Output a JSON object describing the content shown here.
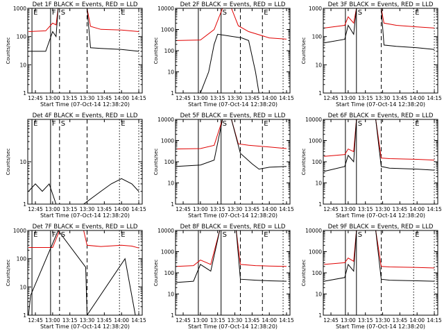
{
  "chart_data": [
    {
      "type": "line",
      "title": "Det 1F BLACK = Events, RED = LLD",
      "xlabel": "Start Time (07-Oct-14 12:38:20)",
      "ylabel": "Counts/sec",
      "ylog": true,
      "ylim": [
        1,
        1000
      ],
      "ytick_labels": [
        "1",
        "10",
        "100",
        "1000"
      ],
      "xlim": [
        12.6389,
        14.3
      ],
      "xtick_labels": [
        "12:45",
        "13:00",
        "13:15",
        "13:30",
        "13:45",
        "14:00",
        "14:15"
      ],
      "markers": [
        {
          "x": 12.7,
          "label": "E",
          "style": "solid"
        },
        {
          "x": 12.97,
          "label": "F",
          "style": "solid"
        },
        {
          "x": 13.1,
          "label": "S",
          "style": "dashed"
        },
        {
          "x": 13.5,
          "label": "",
          "style": "dashed"
        },
        {
          "x": 13.97,
          "label": "E",
          "style": "dotted"
        },
        {
          "x": 14.25,
          "label": "",
          "style": "dotted"
        }
      ],
      "series": [
        {
          "name": "RED",
          "color": "#e00000",
          "x": [
            12.65,
            12.9,
            13.0,
            13.05,
            13.08,
            13.5,
            13.55,
            13.7,
            14.0,
            14.25
          ],
          "y": [
            150,
            160,
            300,
            260,
            1000,
            1000,
            230,
            180,
            170,
            150
          ]
        },
        {
          "name": "BLACK",
          "color": "#000000",
          "x": [
            12.65,
            12.9,
            13.0,
            13.05,
            13.08,
            13.5,
            13.55,
            13.7,
            14.0,
            14.25
          ],
          "y": [
            30,
            30,
            150,
            100,
            1000,
            1000,
            40,
            38,
            35,
            30
          ]
        }
      ]
    },
    {
      "type": "line",
      "title": "Det 2F BLACK = Events, RED = LLD",
      "xlabel": "Start Time (07-Oct-14 12:38:20)",
      "ylabel": "Counts/sec",
      "ylog": true,
      "ylim": [
        1,
        10000
      ],
      "ytick_labels": [
        "1",
        "10",
        "100",
        "1000",
        "10000"
      ],
      "xlim": [
        12.6389,
        14.3
      ],
      "xtick_labels": [
        "12:45",
        "13:00",
        "13:15",
        "13:30",
        "13:45",
        "14:00",
        "14:15"
      ],
      "markers": [
        {
          "x": 12.97,
          "label": "",
          "style": "solid"
        },
        {
          "x": 13.3,
          "label": "S",
          "style": "solid"
        },
        {
          "x": 13.58,
          "label": "",
          "style": "dashed"
        },
        {
          "x": 13.9,
          "label": "E",
          "style": "dashed"
        },
        {
          "x": 14.2,
          "label": "",
          "style": "dotted"
        }
      ],
      "series": [
        {
          "name": "RED",
          "color": "#e00000",
          "x": [
            12.65,
            13.0,
            13.2,
            13.32,
            13.45,
            13.55,
            13.7,
            14.0,
            14.25
          ],
          "y": [
            300,
            320,
            1000,
            10000,
            10000,
            1500,
            800,
            400,
            350
          ]
        },
        {
          "name": "BLACK",
          "color": "#000000",
          "x": [
            12.65,
            13.0,
            13.12,
            13.2,
            13.25,
            13.6,
            13.7,
            13.8,
            13.85
          ],
          "y": [
            1,
            1,
            10,
            200,
            600,
            400,
            300,
            10,
            1
          ]
        }
      ]
    },
    {
      "type": "line",
      "title": "Det 3F BLACK = Events, RED = LLD",
      "xlabel": "Start Time (07-Oct-14 12:38:20)",
      "ylabel": "Counts/sec",
      "ylog": true,
      "ylim": [
        1,
        1000
      ],
      "ytick_labels": [
        "1",
        "10",
        "100",
        "1000"
      ],
      "xlim": [
        12.6389,
        14.3
      ],
      "xtick_labels": [
        "12:45",
        "13:00",
        "13:15",
        "13:30",
        "13:45",
        "14:00",
        "14:15"
      ],
      "markers": [
        {
          "x": 12.96,
          "label": "",
          "style": "solid"
        },
        {
          "x": 13.12,
          "label": "S",
          "style": "solid"
        },
        {
          "x": 13.48,
          "label": "",
          "style": "dashed"
        },
        {
          "x": 13.95,
          "label": "E",
          "style": "dotted"
        },
        {
          "x": 14.25,
          "label": "",
          "style": "dotted"
        }
      ],
      "series": [
        {
          "name": "RED",
          "color": "#e00000",
          "x": [
            12.65,
            12.95,
            13.0,
            13.08,
            13.12,
            13.48,
            13.52,
            13.7,
            14.0,
            14.25
          ],
          "y": [
            200,
            250,
            500,
            300,
            1000,
            1000,
            300,
            250,
            220,
            200
          ]
        },
        {
          "name": "BLACK",
          "color": "#000000",
          "x": [
            12.65,
            12.95,
            13.0,
            13.08,
            13.12,
            13.48,
            13.52,
            13.7,
            14.0,
            14.25
          ],
          "y": [
            60,
            80,
            250,
            120,
            1000,
            1000,
            50,
            45,
            40,
            35
          ]
        }
      ]
    },
    {
      "type": "line",
      "title": "Det 4F BLACK = Events, RED = LLD",
      "xlabel": "Start Time (07-Oct-14 12:38:20)",
      "ylabel": "Counts/sec",
      "ylog": true,
      "ylim": [
        1,
        100
      ],
      "ytick_labels": [
        "1",
        "10"
      ],
      "xlim": [
        12.6389,
        14.3
      ],
      "xtick_labels": [
        "12:45",
        "13:00",
        "13:15",
        "13:30",
        "13:45",
        "14:00",
        "14:15"
      ],
      "markers": [
        {
          "x": 12.7,
          "label": "E",
          "style": "solid"
        },
        {
          "x": 12.97,
          "label": "F",
          "style": "solid"
        },
        {
          "x": 13.1,
          "label": "S",
          "style": "dashed"
        },
        {
          "x": 13.5,
          "label": "",
          "style": "dashed"
        },
        {
          "x": 13.97,
          "label": "E",
          "style": "dotted"
        },
        {
          "x": 14.25,
          "label": "",
          "style": "dotted"
        }
      ],
      "series": [
        {
          "name": "BLACK",
          "color": "#000000",
          "x": [
            12.65,
            12.75,
            12.85,
            12.95,
            13.05,
            13.45,
            13.7,
            13.85,
            14.0,
            14.15,
            14.25
          ],
          "y": [
            2,
            3,
            2,
            3,
            1,
            1,
            2,
            3,
            4,
            3,
            2
          ]
        }
      ]
    },
    {
      "type": "line",
      "title": "Det 5F BLACK = Events, RED = LLD",
      "xlabel": "Start Time (07-Oct-14 12:38:20)",
      "ylabel": "Counts/sec",
      "ylog": true,
      "ylim": [
        1,
        10000
      ],
      "ytick_labels": [
        "1",
        "10",
        "100",
        "1000",
        "10000"
      ],
      "xlim": [
        12.6389,
        14.3
      ],
      "xtick_labels": [
        "12:45",
        "13:00",
        "13:15",
        "13:30",
        "13:45",
        "14:00",
        "14:15"
      ],
      "markers": [
        {
          "x": 12.97,
          "label": "",
          "style": "solid"
        },
        {
          "x": 13.3,
          "label": "S",
          "style": "solid"
        },
        {
          "x": 13.58,
          "label": "",
          "style": "dashed"
        },
        {
          "x": 13.9,
          "label": "E",
          "style": "dashed"
        },
        {
          "x": 14.2,
          "label": "",
          "style": "dotted"
        }
      ],
      "series": [
        {
          "name": "RED",
          "color": "#e00000",
          "x": [
            12.65,
            13.0,
            13.2,
            13.32,
            13.45,
            13.55,
            13.7,
            14.0,
            14.25
          ],
          "y": [
            400,
            420,
            600,
            10000,
            10000,
            700,
            600,
            500,
            420
          ]
        },
        {
          "name": "BLACK",
          "color": "#000000",
          "x": [
            12.65,
            13.0,
            13.2,
            13.32,
            13.45,
            13.58,
            13.75,
            13.85,
            14.0,
            14.25
          ],
          "y": [
            60,
            70,
            120,
            10000,
            10000,
            250,
            80,
            45,
            55,
            60
          ]
        }
      ]
    },
    {
      "type": "line",
      "title": "Det 6F BLACK = Events, RED = LLD",
      "xlabel": "Start Time (07-Oct-14 12:38:20)",
      "ylabel": "Counts/sec",
      "ylog": true,
      "ylim": [
        1,
        10000
      ],
      "ytick_labels": [
        "1",
        "10",
        "100",
        "1000",
        "10000"
      ],
      "xlim": [
        12.6389,
        14.3
      ],
      "xtick_labels": [
        "12:45",
        "13:00",
        "13:15",
        "13:30",
        "13:45",
        "14:00",
        "14:15"
      ],
      "markers": [
        {
          "x": 12.96,
          "label": "",
          "style": "solid"
        },
        {
          "x": 13.12,
          "label": "S",
          "style": "solid"
        },
        {
          "x": 13.48,
          "label": "",
          "style": "dashed"
        },
        {
          "x": 13.95,
          "label": "E",
          "style": "dotted"
        },
        {
          "x": 14.25,
          "label": "",
          "style": "dotted"
        }
      ],
      "series": [
        {
          "name": "RED",
          "color": "#e00000",
          "x": [
            12.65,
            12.95,
            13.0,
            13.08,
            13.12,
            13.4,
            13.48,
            13.6,
            14.0,
            14.25
          ],
          "y": [
            180,
            220,
            400,
            300,
            10000,
            10000,
            150,
            140,
            130,
            120
          ]
        },
        {
          "name": "BLACK",
          "color": "#000000",
          "x": [
            12.65,
            12.95,
            13.0,
            13.08,
            13.12,
            13.4,
            13.48,
            13.6,
            14.0,
            14.25
          ],
          "y": [
            35,
            60,
            200,
            100,
            10000,
            10000,
            60,
            50,
            45,
            40
          ]
        }
      ]
    },
    {
      "type": "line",
      "title": "Det 7F BLACK = Events, RED = LLD",
      "xlabel": "Start Time (07-Oct-14 12:38:20)",
      "ylabel": "Counts/sec",
      "ylog": true,
      "ylim": [
        1,
        1000
      ],
      "ytick_labels": [
        "1",
        "10",
        "100",
        "1000"
      ],
      "xlim": [
        12.6389,
        14.3
      ],
      "xtick_labels": [
        "12:45",
        "13:00",
        "13:15",
        "13:30",
        "13:45",
        "14:00",
        "14:15"
      ],
      "markers": [
        {
          "x": 12.7,
          "label": "E",
          "style": "solid"
        },
        {
          "x": 12.97,
          "label": "F",
          "style": "solid"
        },
        {
          "x": 13.1,
          "label": "S",
          "style": "dashed"
        },
        {
          "x": 13.5,
          "label": "",
          "style": "dashed"
        },
        {
          "x": 13.97,
          "label": "E",
          "style": "dotted"
        },
        {
          "x": 14.25,
          "label": "",
          "style": "dotted"
        }
      ],
      "series": [
        {
          "name": "RED",
          "color": "#e00000",
          "x": [
            12.65,
            13.0,
            13.1,
            13.45,
            13.5,
            13.7,
            14.0,
            14.15,
            14.25
          ],
          "y": [
            250,
            250,
            1000,
            1000,
            300,
            270,
            300,
            280,
            240
          ]
        },
        {
          "name": "BLACK",
          "color": "#000000",
          "x": [
            12.65,
            12.68,
            13.08,
            13.48,
            13.5,
            14.05,
            14.2
          ],
          "y": [
            1,
            5,
            1000,
            50,
            1,
            100,
            1
          ]
        }
      ]
    },
    {
      "type": "line",
      "title": "Det 8F BLACK = Events, RED = LLD",
      "xlabel": "Start Time (07-Oct-14 12:38:20)",
      "ylabel": "Counts/sec",
      "ylog": true,
      "ylim": [
        1,
        10000
      ],
      "ytick_labels": [
        "1",
        "10",
        "100",
        "1000",
        "10000"
      ],
      "xlim": [
        12.6389,
        14.3
      ],
      "xtick_labels": [
        "12:45",
        "13:00",
        "13:15",
        "13:30",
        "13:45",
        "14:00",
        "14:15"
      ],
      "markers": [
        {
          "x": 12.97,
          "label": "",
          "style": "solid"
        },
        {
          "x": 13.3,
          "label": "S",
          "style": "solid"
        },
        {
          "x": 13.58,
          "label": "",
          "style": "dashed"
        },
        {
          "x": 13.9,
          "label": "E",
          "style": "dashed"
        },
        {
          "x": 14.2,
          "label": "",
          "style": "dotted"
        }
      ],
      "series": [
        {
          "name": "RED",
          "color": "#e00000",
          "x": [
            12.65,
            12.9,
            13.0,
            13.15,
            13.28,
            13.52,
            13.58,
            13.8,
            14.0,
            14.25
          ],
          "y": [
            200,
            220,
            400,
            250,
            10000,
            10000,
            250,
            220,
            210,
            200
          ]
        },
        {
          "name": "BLACK",
          "color": "#000000",
          "x": [
            12.65,
            12.9,
            13.0,
            13.15,
            13.28,
            13.52,
            13.58,
            13.8,
            14.0,
            14.25
          ],
          "y": [
            35,
            40,
            250,
            120,
            10000,
            10000,
            50,
            45,
            42,
            40
          ]
        }
      ]
    },
    {
      "type": "line",
      "title": "Det 9F BLACK = Events, RED = LLD",
      "xlabel": "Start Time (07-Oct-14 12:38:20)",
      "ylabel": "Counts/sec",
      "ylog": true,
      "ylim": [
        1,
        10000
      ],
      "ytick_labels": [
        "1",
        "10",
        "100",
        "1000",
        "10000"
      ],
      "xlim": [
        12.6389,
        14.3
      ],
      "xtick_labels": [
        "12:45",
        "13:00",
        "13:15",
        "13:30",
        "13:45",
        "14:00",
        "14:15"
      ],
      "markers": [
        {
          "x": 12.96,
          "label": "",
          "style": "solid"
        },
        {
          "x": 13.12,
          "label": "S",
          "style": "solid"
        },
        {
          "x": 13.48,
          "label": "",
          "style": "dashed"
        },
        {
          "x": 13.95,
          "label": "E",
          "style": "dotted"
        },
        {
          "x": 14.25,
          "label": "",
          "style": "dotted"
        }
      ],
      "series": [
        {
          "name": "RED",
          "color": "#e00000",
          "x": [
            12.65,
            12.95,
            13.0,
            13.08,
            13.12,
            13.4,
            13.48,
            13.6,
            14.0,
            14.25
          ],
          "y": [
            250,
            300,
            500,
            350,
            10000,
            10000,
            200,
            190,
            180,
            170
          ]
        },
        {
          "name": "BLACK",
          "color": "#000000",
          "x": [
            12.65,
            12.95,
            13.0,
            13.08,
            13.12,
            13.4,
            13.48,
            13.6,
            14.0,
            14.25
          ],
          "y": [
            40,
            60,
            250,
            120,
            10000,
            10000,
            50,
            45,
            42,
            40
          ]
        }
      ]
    }
  ]
}
